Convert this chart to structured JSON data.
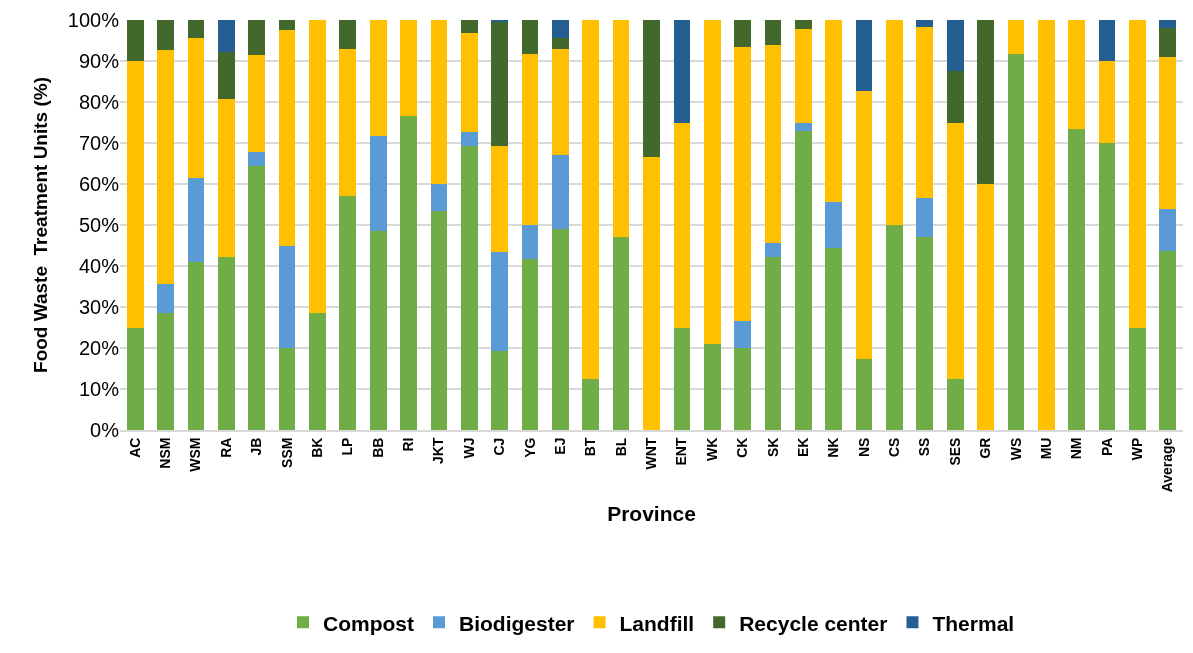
{
  "chart_data": {
    "type": "bar",
    "stacked": true,
    "xlabel": "Province",
    "ylabel": "Food Waste  Treatment Units (%)",
    "categories": [
      "AC",
      "NSM",
      "WSM",
      "RA",
      "JB",
      "SSM",
      "BK",
      "LP",
      "BB",
      "RI",
      "JKT",
      "WJ",
      "CJ",
      "YG",
      "EJ",
      "BT",
      "BL",
      "WNT",
      "ENT",
      "WK",
      "CK",
      "SK",
      "EK",
      "NK",
      "NS",
      "CS",
      "SS",
      "SES",
      "GR",
      "WS",
      "MU",
      "NM",
      "PA",
      "WP",
      "Average"
    ],
    "series": [
      {
        "name": "Compost",
        "color": "#70ad47",
        "values": [
          25,
          28.6,
          41,
          42.3,
          64.5,
          20,
          28.6,
          57.1,
          48.6,
          76.7,
          53.3,
          69.2,
          19.3,
          41.7,
          49,
          12.5,
          47,
          0,
          25,
          21,
          20,
          42.3,
          73,
          44.4,
          17.4,
          50,
          47,
          12.5,
          0,
          91.7,
          0,
          73.3,
          70,
          25,
          43.6
        ]
      },
      {
        "name": "Biodigester",
        "color": "#5b9bd5",
        "values": [
          0,
          7.1,
          20.5,
          0,
          3.2,
          25,
          0,
          0,
          23.1,
          0,
          6.7,
          3.4,
          24.1,
          8.3,
          18,
          0,
          0,
          0,
          0,
          0,
          6.7,
          3.2,
          2,
          11.1,
          0,
          0,
          9.5,
          0,
          0,
          0,
          0,
          0,
          0,
          0,
          10.4
        ]
      },
      {
        "name": "Landfill",
        "color": "#ffc000",
        "values": [
          65,
          57.1,
          34,
          38.5,
          23.7,
          52.5,
          71.4,
          35.8,
          28.3,
          23.3,
          40,
          24.2,
          25.9,
          41.7,
          26,
          87.5,
          53,
          66.7,
          50,
          79,
          66.6,
          48.3,
          22.8,
          44.5,
          65.2,
          50,
          41.7,
          62.5,
          60,
          8.3,
          100,
          26.7,
          20,
          75,
          37
        ]
      },
      {
        "name": "Recycle center",
        "color": "#43682b",
        "values": [
          10,
          7.2,
          4.5,
          11.5,
          8.6,
          2.5,
          0,
          7.1,
          0,
          0,
          0,
          3.2,
          30.1,
          8.3,
          2.5,
          0,
          0,
          33.3,
          0,
          0,
          6.7,
          6.2,
          2.2,
          0,
          0,
          0,
          0,
          12.5,
          40,
          0,
          0,
          0,
          0,
          0,
          7
        ]
      },
      {
        "name": "Thermal",
        "color": "#255e91",
        "values": [
          0,
          0,
          0,
          7.7,
          0,
          0,
          0,
          0,
          0,
          0,
          0,
          0,
          0.6,
          0,
          4.5,
          0,
          0,
          0,
          25,
          0,
          0,
          0,
          0,
          0,
          17.4,
          0,
          1.8,
          12.5,
          0,
          0,
          0,
          0,
          10,
          0,
          2
        ]
      }
    ],
    "ylim": [
      0,
      100
    ],
    "yticks": [
      {
        "value": 0,
        "label": "0%"
      },
      {
        "value": 10,
        "label": "10%"
      },
      {
        "value": 20,
        "label": "20%"
      },
      {
        "value": 30,
        "label": "30%"
      },
      {
        "value": 40,
        "label": "40%"
      },
      {
        "value": 50,
        "label": "50%"
      },
      {
        "value": 60,
        "label": "60%"
      },
      {
        "value": 70,
        "label": "70%"
      },
      {
        "value": 80,
        "label": "80%"
      },
      {
        "value": 90,
        "label": "90%"
      },
      {
        "value": 100,
        "label": "100%"
      }
    ],
    "grid": "y",
    "legend": "bottom"
  }
}
